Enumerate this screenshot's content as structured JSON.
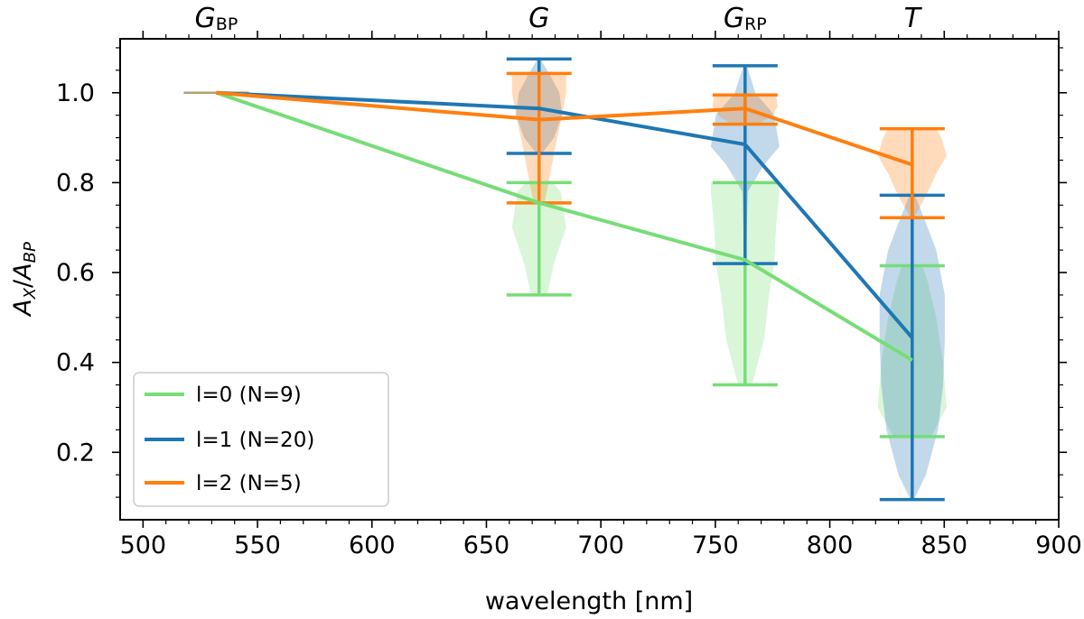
{
  "chart_data": {
    "type": "violin+line",
    "xlabel": "wavelength [nm]",
    "ylabel": {
      "main": "A",
      "sub1": "X",
      "sep": "/",
      "main2": "A",
      "sub2": "BP"
    },
    "xlim": [
      490,
      900
    ],
    "ylim": [
      0.05,
      1.12
    ],
    "xticks": [
      500,
      550,
      600,
      650,
      700,
      750,
      800,
      850,
      900
    ],
    "yticks": [
      0.2,
      0.4,
      0.6,
      0.8,
      1.0
    ],
    "xtick_labels": [
      "500",
      "550",
      "600",
      "650",
      "700",
      "750",
      "800",
      "850",
      "900"
    ],
    "ytick_labels": [
      "0.2",
      "0.4",
      "0.6",
      "0.8",
      "1.0"
    ],
    "top_bands": [
      {
        "x": 532,
        "main": "G",
        "sub": "BP"
      },
      {
        "x": 673,
        "main": "G",
        "sub": ""
      },
      {
        "x": 763,
        "main": "G",
        "sub": "RP"
      },
      {
        "x": 836,
        "main": "T",
        "sub": ""
      }
    ],
    "x": [
      532,
      673,
      763,
      836
    ],
    "legend_position": "lower-left",
    "series": [
      {
        "name": "l=0 (N=9)",
        "color": "#77dd77",
        "fill": "#77dd77",
        "values": [
          1.0,
          0.755,
          0.628,
          0.405
        ],
        "ranges": [
          [
            1.0,
            1.0
          ],
          [
            0.55,
            0.8
          ],
          [
            0.35,
            0.8
          ],
          [
            0.235,
            0.615
          ]
        ],
        "violins": [
          {
            "half_width": 18,
            "profile": [
              [
                1.0,
                1
              ],
              [
                1.0,
                1
              ]
            ]
          },
          {
            "half_width": 30,
            "profile": [
              [
                0.55,
                0.3
              ],
              [
                0.62,
                0.55
              ],
              [
                0.7,
                1.0
              ],
              [
                0.78,
                0.8
              ],
              [
                0.8,
                0.5
              ]
            ]
          },
          {
            "half_width": 38,
            "profile": [
              [
                0.35,
                0.2
              ],
              [
                0.45,
                0.55
              ],
              [
                0.55,
                0.7
              ],
              [
                0.62,
                0.85
              ],
              [
                0.7,
                0.9
              ],
              [
                0.78,
                1.0
              ],
              [
                0.8,
                1.0
              ]
            ]
          },
          {
            "half_width": 38,
            "profile": [
              [
                0.235,
                0.55
              ],
              [
                0.3,
                1.0
              ],
              [
                0.4,
                0.9
              ],
              [
                0.5,
                0.7
              ],
              [
                0.58,
                0.45
              ],
              [
                0.615,
                0.3
              ]
            ]
          }
        ]
      },
      {
        "name": "l=1 (N=20)",
        "color": "#1f77b4",
        "fill": "#1f77b4",
        "values": [
          1.0,
          0.965,
          0.885,
          0.455
        ],
        "ranges": [
          [
            1.0,
            1.0
          ],
          [
            0.865,
            1.075
          ],
          [
            0.62,
            1.06
          ],
          [
            0.095,
            0.772
          ]
        ],
        "violins": [
          {
            "half_width": 18,
            "profile": [
              [
                1.0,
                1
              ],
              [
                1.0,
                1
              ]
            ]
          },
          {
            "half_width": 30,
            "profile": [
              [
                0.865,
                0.1
              ],
              [
                0.9,
                0.55
              ],
              [
                0.95,
                0.85
              ],
              [
                1.0,
                0.75
              ],
              [
                1.04,
                0.4
              ],
              [
                1.075,
                0.05
              ]
            ]
          },
          {
            "half_width": 38,
            "profile": [
              [
                0.62,
                0.03
              ],
              [
                0.7,
                0.05
              ],
              [
                0.78,
                0.08
              ],
              [
                0.84,
                0.55
              ],
              [
                0.88,
                1.0
              ],
              [
                0.95,
                0.85
              ],
              [
                1.0,
                0.3
              ],
              [
                1.06,
                0.05
              ]
            ]
          },
          {
            "half_width": 38,
            "profile": [
              [
                0.095,
                0.05
              ],
              [
                0.15,
                0.4
              ],
              [
                0.25,
                0.75
              ],
              [
                0.35,
                0.9
              ],
              [
                0.45,
                0.95
              ],
              [
                0.55,
                0.95
              ],
              [
                0.65,
                0.7
              ],
              [
                0.72,
                0.35
              ],
              [
                0.772,
                0.08
              ]
            ]
          }
        ]
      },
      {
        "name": "l=2 (N=5)",
        "color": "#ff7f0e",
        "fill": "#ff7f0e",
        "values": [
          1.0,
          0.94,
          0.965,
          0.84
        ],
        "ranges": [
          [
            1.0,
            1.0
          ],
          [
            0.755,
            1.043
          ],
          [
            0.93,
            0.995
          ],
          [
            0.722,
            0.92
          ]
        ],
        "violins": [
          {
            "half_width": 18,
            "profile": [
              [
                1.0,
                1
              ],
              [
                1.0,
                1
              ]
            ]
          },
          {
            "half_width": 30,
            "profile": [
              [
                0.755,
                0.2
              ],
              [
                0.8,
                0.35
              ],
              [
                0.88,
                0.6
              ],
              [
                0.95,
                0.85
              ],
              [
                1.0,
                1.0
              ],
              [
                1.043,
                1.0
              ]
            ]
          },
          {
            "half_width": 38,
            "profile": [
              [
                0.93,
                0.4
              ],
              [
                0.95,
                0.8
              ],
              [
                0.97,
                0.95
              ],
              [
                0.995,
                0.9
              ]
            ]
          },
          {
            "half_width": 38,
            "profile": [
              [
                0.722,
                0.05
              ],
              [
                0.77,
                0.4
              ],
              [
                0.82,
                0.7
              ],
              [
                0.86,
                1.0
              ],
              [
                0.9,
                0.85
              ],
              [
                0.92,
                0.7
              ]
            ]
          }
        ]
      }
    ]
  }
}
